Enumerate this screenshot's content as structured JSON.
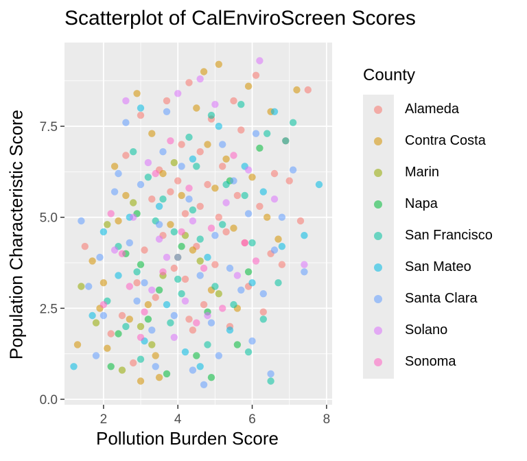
{
  "chart_data": {
    "type": "scatter",
    "title": "Scatterplot of CalEnviroScreen Scores",
    "xlabel": "Pollution Burden Score",
    "ylabel": "Population Characteristic Score",
    "xlim": [
      0.95,
      8.15
    ],
    "ylim": [
      -0.15,
      9.8
    ],
    "xticks": [
      2,
      4,
      6,
      8
    ],
    "xtick_labels": [
      "2",
      "4",
      "6",
      "8"
    ],
    "yticks": [
      0,
      2.5,
      5,
      7.5
    ],
    "ytick_labels": [
      "0.0",
      "2.5",
      "5.0",
      "7.5"
    ],
    "grid": true,
    "legend_title": "County",
    "legend_position": "right",
    "series": [
      {
        "name": "Alameda",
        "color": "#F8766D",
        "values": [
          [
            3.0,
            7.8
          ],
          [
            4.3,
            8.7
          ],
          [
            6.1,
            8.9
          ],
          [
            7.5,
            8.5
          ],
          [
            5.2,
            6.4
          ],
          [
            4.8,
            5.9
          ],
          [
            4.2,
            5.1
          ],
          [
            3.6,
            4.5
          ],
          [
            2.9,
            3.2
          ],
          [
            2.5,
            2.3
          ],
          [
            4.5,
            4.2
          ],
          [
            5.0,
            3.7
          ],
          [
            5.6,
            5.6
          ],
          [
            6.6,
            6.2
          ],
          [
            7.3,
            4.9
          ],
          [
            6.9,
            7.1
          ],
          [
            4.0,
            6.0
          ],
          [
            3.4,
            2.8
          ],
          [
            4.7,
            2.6
          ],
          [
            5.3,
            4.6
          ],
          [
            4.6,
            5.3
          ],
          [
            3.9,
            3.6
          ],
          [
            2.2,
            1.8
          ],
          [
            6.5,
            4.0
          ],
          [
            5.7,
            7.4
          ],
          [
            4.1,
            7.0
          ],
          [
            3.3,
            5.5
          ],
          [
            5.9,
            3.1
          ],
          [
            4.4,
            1.9
          ],
          [
            3.7,
            8.2
          ],
          [
            2.6,
            6.7
          ],
          [
            6.3,
            2.4
          ],
          [
            4.9,
            7.7
          ],
          [
            3.1,
            4.1
          ],
          [
            5.4,
            2.0
          ],
          [
            1.5,
            4.2
          ],
          [
            6.8,
            3.7
          ],
          [
            4.2,
            3.3
          ],
          [
            5.1,
            5.0
          ],
          [
            3.5,
            6.3
          ],
          [
            4.6,
            6.8
          ],
          [
            2.8,
            1.0
          ],
          [
            5.8,
            4.3
          ],
          [
            7.0,
            6.0
          ],
          [
            4.3,
            2.2
          ],
          [
            3.8,
            5.7
          ],
          [
            5.5,
            8.2
          ],
          [
            6.2,
            5.3
          ]
        ]
      },
      {
        "name": "Contra Costa",
        "color": "#D39200",
        "values": [
          [
            2.9,
            8.4
          ],
          [
            5.1,
            9.2
          ],
          [
            6.5,
            7.9
          ],
          [
            7.2,
            8.5
          ],
          [
            4.8,
            7.0
          ],
          [
            3.6,
            6.2
          ],
          [
            2.4,
            4.9
          ],
          [
            1.7,
            3.8
          ],
          [
            3.2,
            2.6
          ],
          [
            2.1,
            1.4
          ],
          [
            4.0,
            3.9
          ],
          [
            5.5,
            4.7
          ],
          [
            6.0,
            6.1
          ],
          [
            3.0,
            0.5
          ],
          [
            2.6,
            5.6
          ],
          [
            4.5,
            8.0
          ],
          [
            5.9,
            8.6
          ],
          [
            1.3,
            1.5
          ],
          [
            3.8,
            4.8
          ],
          [
            4.9,
            3.0
          ],
          [
            2.3,
            6.4
          ],
          [
            6.4,
            5.0
          ],
          [
            3.4,
            1.2
          ],
          [
            5.3,
            6.6
          ],
          [
            4.1,
            5.6
          ],
          [
            2.0,
            3.2
          ],
          [
            6.7,
            4.4
          ],
          [
            4.7,
            9.0
          ],
          [
            3.3,
            7.3
          ],
          [
            5.6,
            2.5
          ],
          [
            4.4,
            4.1
          ],
          [
            2.7,
            2.2
          ],
          [
            3.5,
            0.6
          ],
          [
            1.9,
            2.5
          ],
          [
            5.0,
            5.8
          ]
        ]
      },
      {
        "name": "Marin",
        "color": "#93AA00",
        "values": [
          [
            1.4,
            3.1
          ],
          [
            2.1,
            4.8
          ],
          [
            3.0,
            2.0
          ],
          [
            3.6,
            3.4
          ],
          [
            2.5,
            0.8
          ],
          [
            4.2,
            4.5
          ],
          [
            5.1,
            2.9
          ],
          [
            2.8,
            5.4
          ],
          [
            3.3,
            1.5
          ],
          [
            1.8,
            2.1
          ],
          [
            4.6,
            3.8
          ],
          [
            3.9,
            6.5
          ]
        ]
      },
      {
        "name": "Napa",
        "color": "#00BA38",
        "values": [
          [
            2.4,
            1.8
          ],
          [
            3.5,
            3.0
          ],
          [
            4.1,
            4.2
          ],
          [
            2.9,
            5.1
          ],
          [
            4.8,
            2.4
          ],
          [
            5.4,
            6.0
          ],
          [
            3.2,
            2.2
          ],
          [
            2.6,
            4.0
          ],
          [
            4.5,
            1.2
          ],
          [
            5.9,
            3.5
          ],
          [
            3.7,
            0.7
          ],
          [
            6.2,
            6.9
          ],
          [
            2.2,
            0.9
          ],
          [
            4.9,
            0.6
          ],
          [
            3.0,
            3.7
          ],
          [
            5.6,
            1.5
          ]
        ]
      },
      {
        "name": "San Francisco",
        "color": "#00C19F",
        "values": [
          [
            2.1,
            2.7
          ],
          [
            2.9,
            3.5
          ],
          [
            3.4,
            4.9
          ],
          [
            4.0,
            3.3
          ],
          [
            4.5,
            6.4
          ],
          [
            5.2,
            4.8
          ],
          [
            5.8,
            5.6
          ],
          [
            6.4,
            7.3
          ],
          [
            7.1,
            7.6
          ],
          [
            6.7,
            3.2
          ],
          [
            3.8,
            2.1
          ],
          [
            4.6,
            4.4
          ],
          [
            5.0,
            3.1
          ],
          [
            2.6,
            2.0
          ],
          [
            3.2,
            6.1
          ],
          [
            4.3,
            7.2
          ],
          [
            5.5,
            2.6
          ],
          [
            6.0,
            4.3
          ],
          [
            4.8,
            1.5
          ],
          [
            3.6,
            5.5
          ],
          [
            2.4,
            4.2
          ],
          [
            5.3,
            5.9
          ],
          [
            4.1,
            2.9
          ],
          [
            6.9,
            7.1
          ],
          [
            5.9,
            1.3
          ],
          [
            3.0,
            1.1
          ],
          [
            4.4,
            5.2
          ],
          [
            6.3,
            2.2
          ],
          [
            5.7,
            8.1
          ],
          [
            3.9,
            4.6
          ],
          [
            6.5,
            0.5
          ],
          [
            2.8,
            6.8
          ],
          [
            4.9,
            7.8
          ]
        ]
      },
      {
        "name": "San Mateo",
        "color": "#00B9E3",
        "values": [
          [
            1.2,
            0.9
          ],
          [
            1.7,
            2.3
          ],
          [
            2.4,
            3.4
          ],
          [
            3.1,
            1.6
          ],
          [
            3.7,
            2.6
          ],
          [
            4.2,
            1.3
          ],
          [
            4.8,
            3.9
          ],
          [
            5.4,
            1.9
          ],
          [
            6.0,
            3.2
          ],
          [
            6.8,
            4.2
          ],
          [
            7.4,
            4.5
          ],
          [
            7.8,
            5.9
          ],
          [
            6.3,
            5.7
          ],
          [
            5.1,
            7.5
          ],
          [
            3.5,
            5.3
          ],
          [
            2.7,
            5.0
          ],
          [
            4.4,
            6.6
          ],
          [
            5.8,
            6.4
          ],
          [
            3.0,
            8.0
          ],
          [
            2.0,
            4.6
          ],
          [
            4.6,
            0.9
          ],
          [
            6.6,
            7.9
          ]
        ]
      },
      {
        "name": "Santa Clara",
        "color": "#619CFF",
        "values": [
          [
            1.4,
            4.9
          ],
          [
            1.9,
            3.9
          ],
          [
            2.3,
            5.7
          ],
          [
            2.7,
            4.3
          ],
          [
            3.1,
            3.2
          ],
          [
            3.5,
            4.8
          ],
          [
            3.9,
            2.3
          ],
          [
            4.4,
            0.8
          ],
          [
            4.6,
            3.4
          ],
          [
            5.0,
            4.5
          ],
          [
            5.4,
            3.6
          ],
          [
            5.9,
            5.1
          ],
          [
            6.3,
            2.9
          ],
          [
            6.8,
            5.0
          ],
          [
            7.1,
            6.3
          ],
          [
            6.5,
            0.7
          ],
          [
            4.7,
            0.4
          ],
          [
            3.3,
            1.9
          ],
          [
            2.6,
            7.6
          ],
          [
            3.7,
            7.9
          ],
          [
            4.1,
            6.4
          ],
          [
            5.2,
            7.0
          ],
          [
            5.7,
            3.0
          ],
          [
            6.1,
            7.3
          ],
          [
            2.0,
            2.3
          ],
          [
            3.0,
            5.9
          ],
          [
            4.3,
            5.5
          ],
          [
            5.5,
            6.0
          ],
          [
            1.8,
            1.2
          ],
          [
            2.9,
            2.7
          ],
          [
            4.9,
            2.1
          ],
          [
            6.6,
            4.1
          ],
          [
            3.6,
            6.8
          ],
          [
            5.1,
            1.2
          ],
          [
            1.6,
            3.1
          ],
          [
            4.0,
            3.9
          ],
          [
            6.0,
            1.6
          ],
          [
            2.4,
            6.2
          ],
          [
            7.4,
            3.5
          ],
          [
            3.4,
            0.9
          ]
        ]
      },
      {
        "name": "Solano",
        "color": "#DB72FB",
        "values": [
          [
            2.6,
            8.2
          ],
          [
            3.2,
            6.5
          ],
          [
            3.7,
            3.9
          ],
          [
            4.2,
            2.7
          ],
          [
            4.6,
            8.8
          ],
          [
            5.3,
            5.4
          ],
          [
            6.2,
            9.3
          ],
          [
            5.9,
            6.3
          ],
          [
            7.4,
            3.7
          ],
          [
            2.8,
            5.0
          ],
          [
            3.5,
            4.4
          ],
          [
            4.0,
            8.4
          ],
          [
            4.8,
            2.3
          ],
          [
            3.3,
            3.0
          ],
          [
            2.3,
            4.1
          ],
          [
            5.6,
            3.4
          ],
          [
            6.6,
            5.5
          ],
          [
            4.4,
            4.9
          ],
          [
            3.9,
            1.7
          ],
          [
            5.0,
            8.1
          ]
        ]
      },
      {
        "name": "Sonoma",
        "color": "#FF61C3",
        "values": [
          [
            2.0,
            2.6
          ],
          [
            2.5,
            4.0
          ],
          [
            3.1,
            2.4
          ],
          [
            3.6,
            3.5
          ],
          [
            4.1,
            4.6
          ],
          [
            4.7,
            3.6
          ],
          [
            5.2,
            2.5
          ],
          [
            5.8,
            4.3
          ],
          [
            2.2,
            5.1
          ],
          [
            3.4,
            6.2
          ],
          [
            4.3,
            5.8
          ],
          [
            5.5,
            6.7
          ],
          [
            3.0,
            1.7
          ],
          [
            4.5,
            2.1
          ],
          [
            2.7,
            3.1
          ],
          [
            6.1,
            3.8
          ],
          [
            3.8,
            7.1
          ],
          [
            4.9,
            4.7
          ]
        ]
      }
    ]
  }
}
